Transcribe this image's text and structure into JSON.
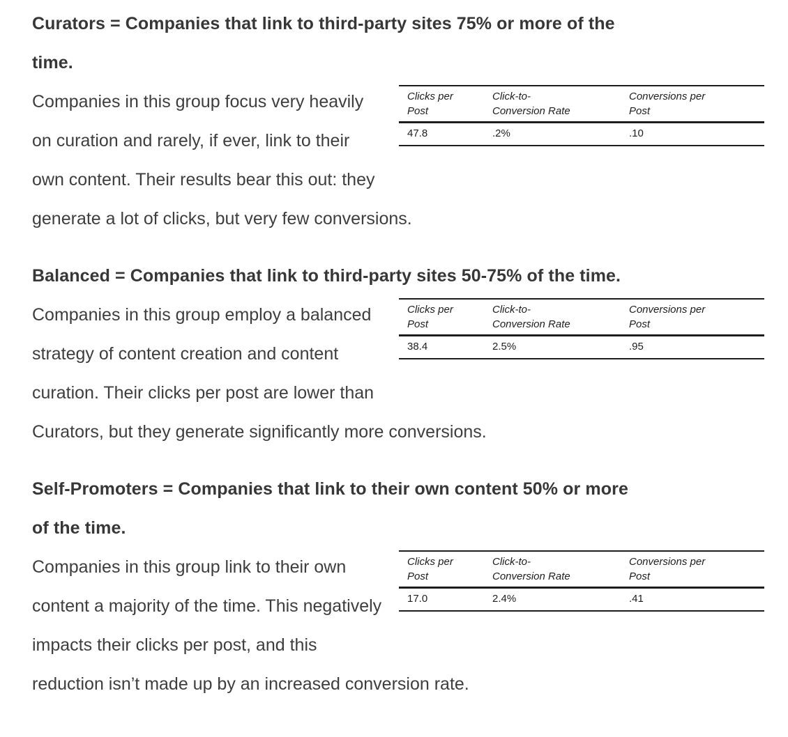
{
  "page": {
    "sections": [
      {
        "id": "curators",
        "heading": "Curators = Companies that link to third-party sites 75% or more of the\ntime.",
        "body": "Companies in this group focus very heavily on curation and rarely, if ever, link to their own content. Their results bear this out: they generate a lot of clicks, but very few conversions.",
        "table": {
          "headers": [
            "Clicks per\nPost",
            "Click-to-\nConversion Rate",
            "Conversions per\nPost"
          ],
          "values": [
            "47.8",
            ".2%",
            ".10"
          ]
        }
      },
      {
        "id": "balanced",
        "heading": "Balanced = Companies that link to third-party sites 50-75% of the time.",
        "body": "Companies in this group employ a balanced strategy of content creation and content curation. Their clicks per post are lower than Curators, but they generate significantly more conversions.",
        "table": {
          "headers": [
            "Clicks per\nPost",
            "Click-to-\nConversion Rate",
            "Conversions per\nPost"
          ],
          "values": [
            "38.4",
            "2.5%",
            ".95"
          ]
        }
      },
      {
        "id": "self-promoters",
        "heading": "Self-Promoters = Companies that link to their own content 50% or more\nof the time.",
        "body": "Companies in this group link to their own content a majority of the time. This negatively impacts their clicks per post, and this reduction isn’t made up by an increased conversion rate.",
        "table": {
          "headers": [
            "Clicks per\nPost",
            "Click-to-\nConversion Rate",
            "Conversions per\nPost"
          ],
          "values": [
            "17.0",
            "2.4%",
            ".41"
          ]
        }
      }
    ],
    "colors": {
      "heading_text": "#373737",
      "body_text": "#3e3e3e",
      "table_text": "#1e1e1e",
      "table_rule": "#1c1c1c",
      "background": "#ffffff"
    }
  }
}
